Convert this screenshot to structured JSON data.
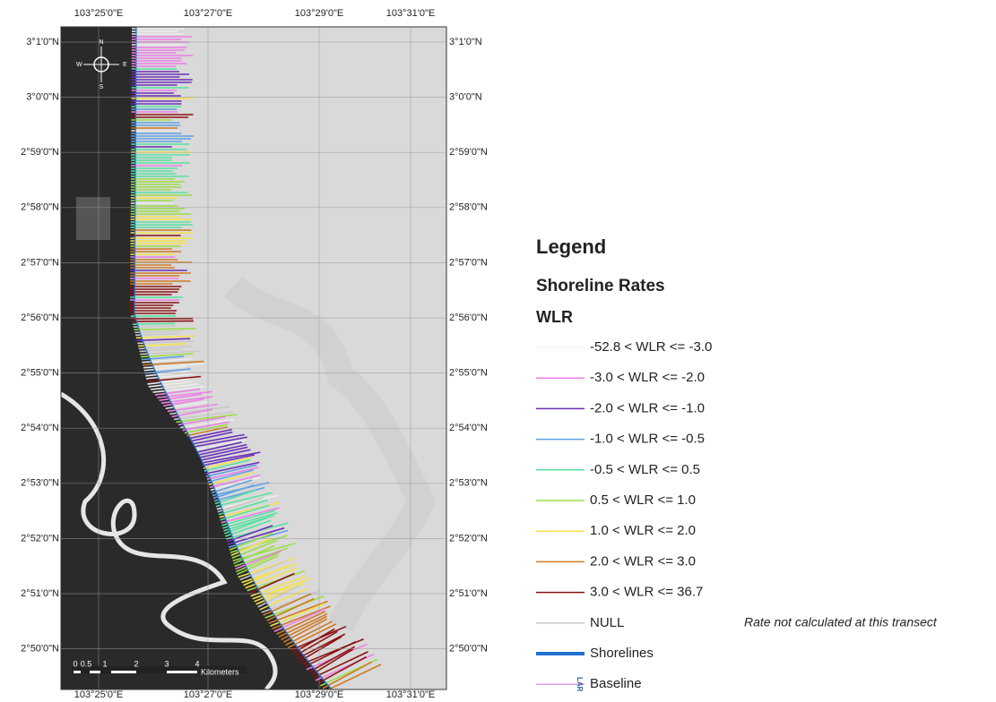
{
  "map": {
    "lon_labels": [
      "103°25'0\"E",
      "103°27'0\"E",
      "103°29'0\"E",
      "103°31'0\"E"
    ],
    "lat_labels": [
      "3°1'0\"N",
      "3°0'0\"N",
      "2°59'0\"N",
      "2°58'0\"N",
      "2°57'0\"N",
      "2°56'0\"N",
      "2°55'0\"N",
      "2°54'0\"N",
      "2°53'0\"N",
      "2°52'0\"N",
      "2°51'0\"N",
      "2°50'0\"N"
    ],
    "compass": {
      "n": "N",
      "s": "S",
      "e": "E",
      "w": "W"
    },
    "scale_bar": {
      "labels": [
        "0",
        "0.5",
        "1",
        "2",
        "3",
        "4"
      ],
      "unit": "Kilometers"
    }
  },
  "legend": {
    "title": "Legend",
    "subtitle": "Shoreline Rates",
    "field": "WLR",
    "items": [
      {
        "label": "-52.8 < WLR <= -3.0",
        "color": "#ececec"
      },
      {
        "label": "-3.0 < WLR <= -2.0",
        "color": "#ee7fe8"
      },
      {
        "label": "-2.0 < WLR <= -1.0",
        "color": "#6a2fb8"
      },
      {
        "label": "-1.0 < WLR <= -0.5",
        "color": "#5ea2e6"
      },
      {
        "label": "-0.5 < WLR <= 0.5",
        "color": "#55e3a0"
      },
      {
        "label": "0.5 < WLR <= 1.0",
        "color": "#9ade45"
      },
      {
        "label": "1.0 < WLR <= 2.0",
        "color": "#f6e24a"
      },
      {
        "label": "2.0 < WLR <= 3.0",
        "color": "#cf7a22"
      },
      {
        "label": "3.0 < WLR <= 36.7",
        "color": "#8c1212"
      },
      {
        "label": "NULL",
        "color": "#c9c9c9"
      },
      {
        "label": "Shorelines",
        "color": "#1e6fcf"
      },
      {
        "label": "Baseline",
        "color": "#e49be6"
      }
    ],
    "null_note": "Rate not calculated at this transect",
    "baseline_icon": "LAR"
  }
}
